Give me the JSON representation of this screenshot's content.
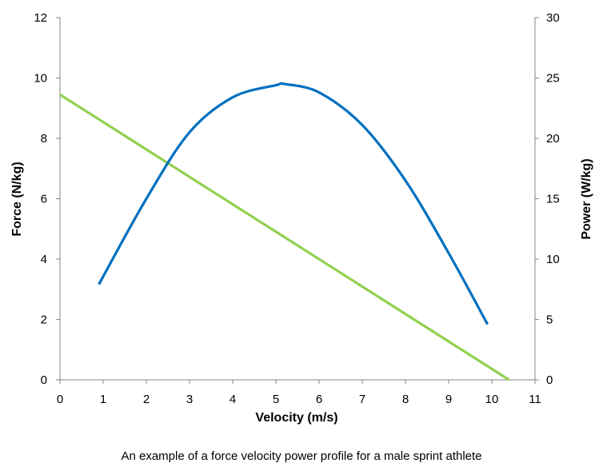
{
  "chart_data": {
    "type": "line",
    "caption": "An example of a force velocity power profile for a male sprint athlete",
    "xlabel": "Velocity (m/s)",
    "ylabel": "Force (N/kg)",
    "y2label": "Power (W/kg)",
    "xlim": [
      0,
      11
    ],
    "ylim": [
      0,
      12
    ],
    "y2lim": [
      0,
      30
    ],
    "x_ticks": [
      "0",
      "1",
      "2",
      "3",
      "4",
      "5",
      "6",
      "7",
      "8",
      "9",
      "10",
      "11"
    ],
    "y_ticks": [
      "0",
      "2",
      "4",
      "6",
      "8",
      "10",
      "12"
    ],
    "y2_ticks": [
      "0",
      "5",
      "10",
      "15",
      "20",
      "25",
      "30"
    ],
    "grid": false,
    "series": [
      {
        "name": "Force",
        "axis": "left",
        "color": "#92d050",
        "x": [
          0,
          10.4
        ],
        "y": [
          9.45,
          0
        ]
      },
      {
        "name": "Power",
        "axis": "right",
        "color": "#0070c0",
        "x": [
          0.9,
          2,
          3,
          4,
          5,
          5.2,
          6,
          7,
          8,
          9,
          9.9
        ],
        "y": [
          7.9,
          15.0,
          20.5,
          23.4,
          24.4,
          24.5,
          23.8,
          21.1,
          16.5,
          10.5,
          4.6
        ]
      }
    ]
  }
}
